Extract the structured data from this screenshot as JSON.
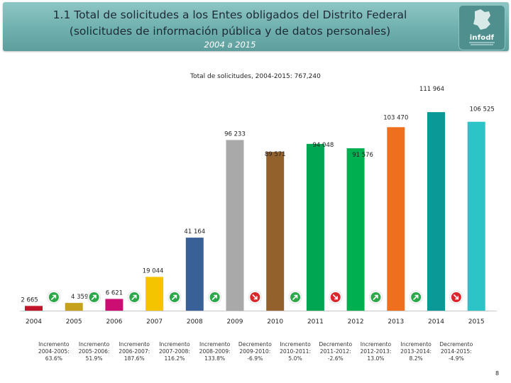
{
  "header": {
    "title_line1": "1.1 Total de solicitudes a los Entes obligados del Distrito Federal",
    "title_line2": "(solicitudes de información pública y de datos personales)",
    "subtitle": "2004 a 2015",
    "logo_text": "infodf"
  },
  "chart_data": {
    "type": "bar",
    "title": "Total de solicitudes, 2004-2015: 767,240",
    "xlabel": "",
    "ylabel": "",
    "categories": [
      "2004",
      "2005",
      "2006",
      "2007",
      "2008",
      "2009",
      "2010",
      "2011",
      "2012",
      "2013",
      "2014",
      "2015"
    ],
    "values": [
      2665,
      4359,
      6621,
      19044,
      41164,
      96233,
      89571,
      94048,
      91576,
      103470,
      111964,
      106525
    ],
    "value_labels": [
      "2 665",
      "4 359",
      "6 621",
      "19 044",
      "41 164",
      "96 233",
      "89 571",
      "94 048",
      "91 576",
      "103 470",
      "111 964",
      "106 525"
    ],
    "colors": [
      "#c0152a",
      "#c6a21c",
      "#cc0e72",
      "#f5c400",
      "#3a6197",
      "#a9a9a9",
      "#93622c",
      "#00a651",
      "#00b050",
      "#ee6f1e",
      "#0a9996",
      "#2dc4c8"
    ],
    "ylim": [
      0,
      112000
    ],
    "grid": false,
    "trend_colors": {
      "up": "#2ca84a",
      "down": "#d8262b"
    },
    "changes": [
      {
        "kind": "Incremento",
        "period": "2004-2005:",
        "value": "63.6%",
        "trend": "up"
      },
      {
        "kind": "Incremento",
        "period": "2005-2006:",
        "value": "51.9%",
        "trend": "up"
      },
      {
        "kind": "Incremento",
        "period": "2006-2007:",
        "value": "187.6%",
        "trend": "up"
      },
      {
        "kind": "Incremento",
        "period": "2007-2008:",
        "value": "116.2%",
        "trend": "up"
      },
      {
        "kind": "Incremento",
        "period": "2008-2009:",
        "value": "133.8%",
        "trend": "up"
      },
      {
        "kind": "Decremento",
        "period": "2009-2010:",
        "value": "-6.9%",
        "trend": "down"
      },
      {
        "kind": "Incremento",
        "period": "2010-2011:",
        "value": "5.0%",
        "trend": "up"
      },
      {
        "kind": "Decremento",
        "period": "2011-2012:",
        "value": "-2.6%",
        "trend": "down"
      },
      {
        "kind": "Incremento",
        "period": "2012-2013:",
        "value": "13.0%",
        "trend": "up"
      },
      {
        "kind": "Incremento",
        "period": "2013-2014:",
        "value": "8.2%",
        "trend": "up"
      },
      {
        "kind": "Decremento",
        "period": "2014-2015:",
        "value": "-4.9%",
        "trend": "down"
      }
    ]
  },
  "page_number": "8"
}
